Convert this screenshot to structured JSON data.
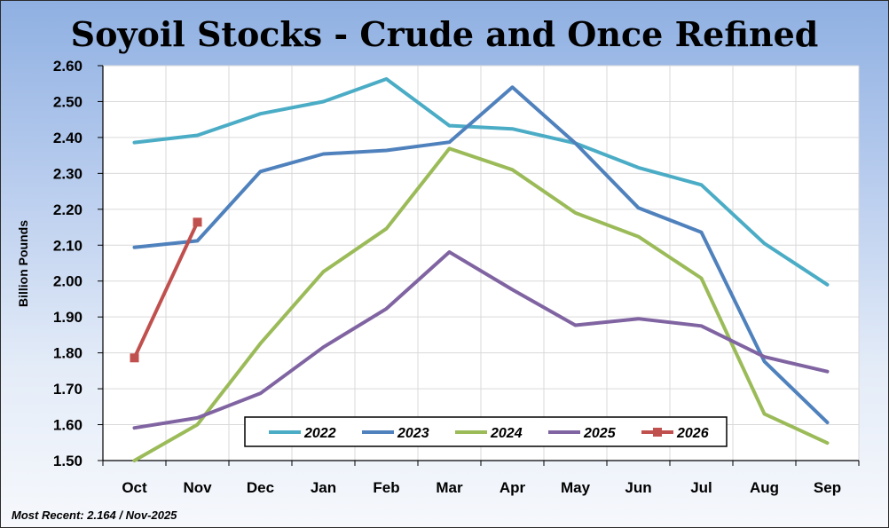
{
  "chart_data": {
    "type": "line",
    "title": "Soyoil Stocks - Crude and Once Refined",
    "xlabel": "",
    "ylabel": "Billion Pounds",
    "categories": [
      "Oct",
      "Nov",
      "Dec",
      "Jan",
      "Feb",
      "Mar",
      "Apr",
      "May",
      "Jun",
      "Jul",
      "Aug",
      "Sep"
    ],
    "ylim": [
      1.5,
      2.6
    ],
    "yticks": [
      "1.50",
      "1.60",
      "1.70",
      "1.80",
      "1.90",
      "2.00",
      "2.10",
      "2.20",
      "2.30",
      "2.40",
      "2.50",
      "2.60"
    ],
    "grid": true,
    "legend_position": "bottom-center",
    "series": [
      {
        "name": "2022",
        "color": "#4bacc6",
        "marker": "none",
        "values": [
          2.386,
          2.406,
          2.466,
          2.5,
          2.563,
          2.433,
          2.424,
          2.384,
          2.316,
          2.268,
          2.105,
          1.99
        ]
      },
      {
        "name": "2023",
        "color": "#4f81bd",
        "marker": "none",
        "values": [
          2.094,
          2.112,
          2.305,
          2.354,
          2.364,
          2.387,
          2.54,
          2.384,
          2.204,
          2.136,
          1.776,
          1.606
        ]
      },
      {
        "name": "2024",
        "color": "#9bbb59",
        "marker": "none",
        "values": [
          1.5,
          1.6,
          1.826,
          2.026,
          2.146,
          2.369,
          2.31,
          2.19,
          2.124,
          2.008,
          1.63,
          1.549
        ]
      },
      {
        "name": "2025",
        "color": "#8064a2",
        "marker": "none",
        "values": [
          1.591,
          1.619,
          1.687,
          1.816,
          1.923,
          2.081,
          1.976,
          1.877,
          1.895,
          1.875,
          1.789,
          1.748
        ]
      },
      {
        "name": "2026",
        "color": "#c0504d",
        "marker": "square",
        "values": [
          1.786,
          2.164,
          null,
          null,
          null,
          null,
          null,
          null,
          null,
          null,
          null,
          null
        ]
      }
    ],
    "annotation": "Most Recent: 2.164 / Nov-2025"
  }
}
